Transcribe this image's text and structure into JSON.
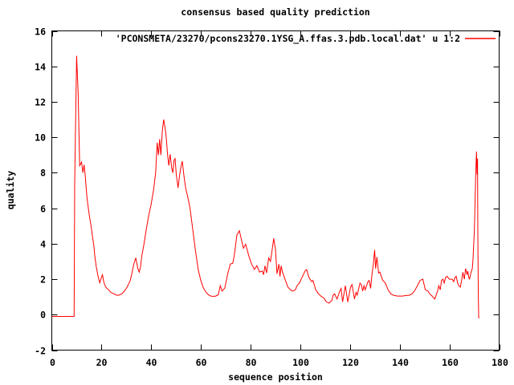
{
  "colors": {
    "background": "#ffffff",
    "border": "#000000",
    "text": "#000000",
    "series": "#ff0000"
  },
  "chart_data": {
    "type": "line",
    "title": "consensus based quality prediction",
    "xlabel": "sequence position",
    "ylabel": "quality",
    "legend": "'PCONSMETA/23270/pcons23270.1YSG_A.ffas.3.pdb.local.dat' u 1:2",
    "legend_position": "top-right-inside",
    "grid": false,
    "xlim": [
      0,
      180
    ],
    "ylim": [
      -2,
      16
    ],
    "x_ticks": [
      "0",
      "20",
      "40",
      "60",
      "80",
      "100",
      "120",
      "140",
      "160",
      "180"
    ],
    "y_ticks": [
      "-2",
      "0",
      "2",
      "4",
      "6",
      "8",
      "10",
      "12",
      "14",
      "16"
    ],
    "series": [
      {
        "name": "'PCONSMETA/23270/pcons23270.1YSG_A.ffas.3.pdb.local.dat' u 1:2",
        "color": "#ff0000",
        "points": [
          [
            0,
            -0.1
          ],
          [
            9,
            -0.1
          ],
          [
            9.2,
            7.4
          ],
          [
            10,
            14.6
          ],
          [
            10.6,
            12.5
          ],
          [
            11.2,
            8.4
          ],
          [
            12,
            8.6
          ],
          [
            12.5,
            8.0
          ],
          [
            13,
            8.45
          ],
          [
            13.4,
            7.9
          ],
          [
            14.2,
            6.55
          ],
          [
            14.7,
            6.0
          ],
          [
            15.2,
            5.5
          ],
          [
            15.8,
            5.0
          ],
          [
            16.3,
            4.5
          ],
          [
            16.9,
            3.9
          ],
          [
            17.4,
            3.2
          ],
          [
            17.9,
            2.7
          ],
          [
            18.5,
            2.25
          ],
          [
            19,
            1.95
          ],
          [
            19.3,
            1.8
          ],
          [
            20.1,
            2.15
          ],
          [
            20.4,
            2.25
          ],
          [
            20.9,
            1.85
          ],
          [
            21.7,
            1.55
          ],
          [
            22.8,
            1.4
          ],
          [
            23.8,
            1.25
          ],
          [
            24.9,
            1.18
          ],
          [
            26,
            1.1
          ],
          [
            27.1,
            1.1
          ],
          [
            28.2,
            1.18
          ],
          [
            29.2,
            1.33
          ],
          [
            30.3,
            1.55
          ],
          [
            30.8,
            1.7
          ],
          [
            31.5,
            1.9
          ],
          [
            32.2,
            2.3
          ],
          [
            33,
            2.85
          ],
          [
            33.8,
            3.2
          ],
          [
            34.6,
            2.6
          ],
          [
            35.2,
            2.4
          ],
          [
            35.7,
            2.7
          ],
          [
            36.2,
            3.3
          ],
          [
            37,
            3.9
          ],
          [
            38,
            4.8
          ],
          [
            39,
            5.6
          ],
          [
            40,
            6.25
          ],
          [
            41,
            7.1
          ],
          [
            41.8,
            8.0
          ],
          [
            42.4,
            9.7
          ],
          [
            42.9,
            9.0
          ],
          [
            43.4,
            9.9
          ],
          [
            43.9,
            9.0
          ],
          [
            44.5,
            10.4
          ],
          [
            45,
            11.0
          ],
          [
            45.6,
            10.5
          ],
          [
            46,
            10.1
          ],
          [
            46.6,
            9.0
          ],
          [
            47.1,
            8.4
          ],
          [
            47.6,
            9.05
          ],
          [
            48.2,
            8.3
          ],
          [
            48.7,
            8.0
          ],
          [
            49.2,
            8.7
          ],
          [
            49.6,
            8.8
          ],
          [
            50.1,
            7.9
          ],
          [
            50.8,
            7.15
          ],
          [
            51.4,
            7.85
          ],
          [
            52,
            8.35
          ],
          [
            52.5,
            8.65
          ],
          [
            53.2,
            7.8
          ],
          [
            53.9,
            7.1
          ],
          [
            54.6,
            6.7
          ],
          [
            55.6,
            6.0
          ],
          [
            56.7,
            4.8
          ],
          [
            57.8,
            3.6
          ],
          [
            58.9,
            2.55
          ],
          [
            59.9,
            1.95
          ],
          [
            61,
            1.5
          ],
          [
            62.1,
            1.25
          ],
          [
            63,
            1.12
          ],
          [
            64,
            1.05
          ],
          [
            65,
            1.03
          ],
          [
            66,
            1.05
          ],
          [
            67,
            1.12
          ],
          [
            67.8,
            1.63
          ],
          [
            68.5,
            1.33
          ],
          [
            69.6,
            1.5
          ],
          [
            70.7,
            2.25
          ],
          [
            71.8,
            2.85
          ],
          [
            72.8,
            2.9
          ],
          [
            73.4,
            3.3
          ],
          [
            74.5,
            4.5
          ],
          [
            75.5,
            4.73
          ],
          [
            76.6,
            4.05
          ],
          [
            77.1,
            3.75
          ],
          [
            78,
            3.97
          ],
          [
            79.3,
            3.3
          ],
          [
            80.4,
            2.85
          ],
          [
            81.5,
            2.55
          ],
          [
            82.5,
            2.76
          ],
          [
            83.6,
            2.4
          ],
          [
            84.7,
            2.46
          ],
          [
            85.2,
            2.25
          ],
          [
            85.8,
            2.76
          ],
          [
            86.4,
            2.35
          ],
          [
            87.3,
            3.2
          ],
          [
            88,
            3.0
          ],
          [
            88.6,
            3.6
          ],
          [
            89.3,
            4.3
          ],
          [
            90,
            3.67
          ],
          [
            90.6,
            2.3
          ],
          [
            91.4,
            2.85
          ],
          [
            91.8,
            2.15
          ],
          [
            92.3,
            2.76
          ],
          [
            92.8,
            2.4
          ],
          [
            94,
            1.93
          ],
          [
            95,
            1.55
          ],
          [
            96,
            1.4
          ],
          [
            97,
            1.33
          ],
          [
            98,
            1.4
          ],
          [
            98.7,
            1.63
          ],
          [
            99.7,
            1.8
          ],
          [
            100.7,
            2.1
          ],
          [
            101.9,
            2.46
          ],
          [
            102.5,
            2.54
          ],
          [
            103.5,
            2.08
          ],
          [
            104.6,
            1.86
          ],
          [
            105.1,
            1.93
          ],
          [
            106.2,
            1.4
          ],
          [
            107.3,
            1.18
          ],
          [
            108.4,
            1.03
          ],
          [
            109.4,
            0.95
          ],
          [
            110.5,
            0.72
          ],
          [
            111.6,
            0.65
          ],
          [
            112.7,
            0.8
          ],
          [
            113.2,
            1.1
          ],
          [
            113.8,
            1.18
          ],
          [
            114.8,
            0.88
          ],
          [
            115.9,
            1.33
          ],
          [
            116.4,
            1.48
          ],
          [
            117,
            0.72
          ],
          [
            118.1,
            1.63
          ],
          [
            119.1,
            0.72
          ],
          [
            120.2,
            1.55
          ],
          [
            120.8,
            1.7
          ],
          [
            121.8,
            0.88
          ],
          [
            122.4,
            1.25
          ],
          [
            122.9,
            1.1
          ],
          [
            124,
            1.78
          ],
          [
            124.5,
            1.7
          ],
          [
            125.1,
            1.33
          ],
          [
            125.6,
            1.63
          ],
          [
            126.1,
            1.4
          ],
          [
            127.2,
            1.86
          ],
          [
            127.7,
            1.93
          ],
          [
            128.3,
            1.48
          ],
          [
            128.8,
            2.25
          ],
          [
            129.4,
            2.85
          ],
          [
            129.9,
            3.65
          ],
          [
            130.3,
            2.6
          ],
          [
            130.8,
            3.25
          ],
          [
            131.5,
            2.35
          ],
          [
            132,
            2.4
          ],
          [
            133.1,
            1.95
          ],
          [
            134.2,
            1.78
          ],
          [
            135.3,
            1.4
          ],
          [
            136.4,
            1.18
          ],
          [
            137.4,
            1.1
          ],
          [
            139,
            1.05
          ],
          [
            141,
            1.05
          ],
          [
            142.7,
            1.08
          ],
          [
            143.9,
            1.1
          ],
          [
            145,
            1.18
          ],
          [
            146,
            1.35
          ],
          [
            147,
            1.6
          ],
          [
            148.2,
            1.93
          ],
          [
            149.3,
            2.0
          ],
          [
            150.3,
            1.4
          ],
          [
            151.4,
            1.33
          ],
          [
            152,
            1.18
          ],
          [
            153,
            1.05
          ],
          [
            153.6,
            0.95
          ],
          [
            154.1,
            0.88
          ],
          [
            155.2,
            1.33
          ],
          [
            155.7,
            1.63
          ],
          [
            156.3,
            1.4
          ],
          [
            156.8,
            1.93
          ],
          [
            157.4,
            2.0
          ],
          [
            157.9,
            1.78
          ],
          [
            158.4,
            2.08
          ],
          [
            159,
            2.16
          ],
          [
            160,
            2.0
          ],
          [
            161.1,
            2.0
          ],
          [
            161.7,
            1.86
          ],
          [
            162.2,
            2.08
          ],
          [
            162.7,
            2.16
          ],
          [
            163.3,
            1.78
          ],
          [
            163.8,
            1.63
          ],
          [
            164.4,
            1.55
          ],
          [
            164.9,
            1.93
          ],
          [
            165.4,
            2.39
          ],
          [
            166,
            2.0
          ],
          [
            166.5,
            2.6
          ],
          [
            167.1,
            2.25
          ],
          [
            167.4,
            2.46
          ],
          [
            167.8,
            2.08
          ],
          [
            168.1,
            2.01
          ],
          [
            168.7,
            2.39
          ],
          [
            169.2,
            2.6
          ],
          [
            169.5,
            3.14
          ],
          [
            169.7,
            3.75
          ],
          [
            170,
            4.66
          ],
          [
            170.2,
            5.7
          ],
          [
            170.4,
            6.9
          ],
          [
            170.6,
            8.0
          ],
          [
            170.9,
            9.2
          ],
          [
            171.1,
            7.9
          ],
          [
            171.3,
            8.8
          ],
          [
            171.45,
            4.5
          ],
          [
            171.6,
            1.4
          ],
          [
            171.75,
            -0.15
          ],
          [
            172,
            -0.2
          ]
        ]
      }
    ]
  }
}
